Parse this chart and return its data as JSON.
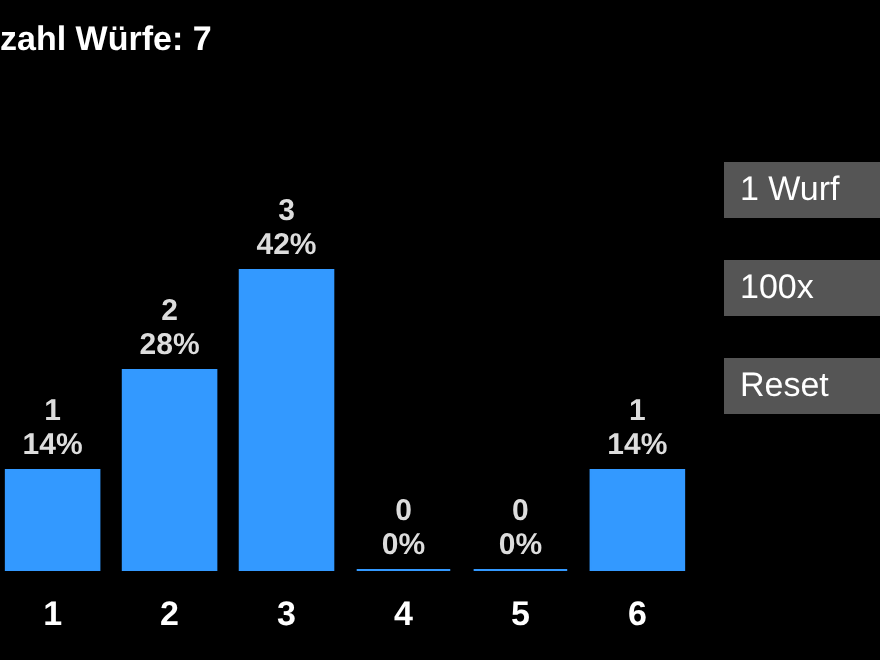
{
  "chart_data": {
    "type": "bar",
    "title": "zahl Würfe: 7",
    "categories": [
      "1",
      "2",
      "3",
      "4",
      "5",
      "6"
    ],
    "values": [
      1,
      2,
      3,
      0,
      0,
      1
    ],
    "value_labels": [
      "1",
      "2",
      "3",
      "0",
      "0",
      "1"
    ],
    "color": "#3399ff",
    "grid": false,
    "annotations": [
      {
        "text": "14%",
        "x": "1",
        "y": 1
      },
      {
        "text": "28%",
        "x": "2",
        "y": 2
      },
      {
        "text": "42%",
        "x": "3",
        "y": 3
      },
      {
        "text": "0%",
        "x": "4",
        "y": 0
      },
      {
        "text": "0%",
        "x": "5",
        "y": 0
      },
      {
        "text": "14%",
        "x": "6",
        "y": 1
      },
      "1 Wurf",
      "100x",
      "Reset"
    ]
  }
}
